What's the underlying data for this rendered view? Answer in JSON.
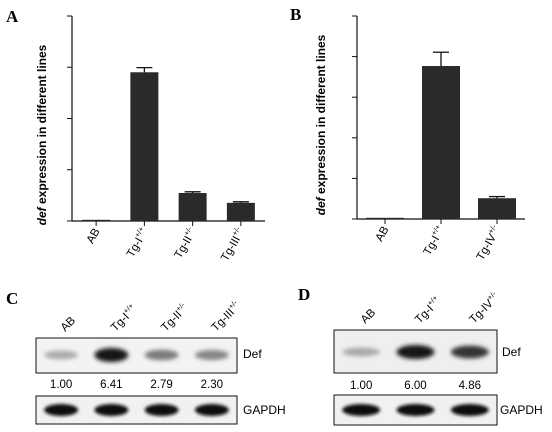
{
  "panels": {
    "A": {
      "letter": "A"
    },
    "B": {
      "letter": "B"
    },
    "C": {
      "letter": "C"
    },
    "D": {
      "letter": "D"
    }
  },
  "chart_data": [
    {
      "type": "bar",
      "panel": "A",
      "ylabel_italic": "def",
      "ylabel_rest": " expression in different lines",
      "ylim": [
        0,
        200
      ],
      "yticks": [
        "0",
        "50",
        "100",
        "150",
        "200"
      ],
      "categories": [
        {
          "base": "AB",
          "sup": ""
        },
        {
          "base": "Tg-I",
          "sup": "+/+"
        },
        {
          "base": "Tg-II",
          "sup": "+/-"
        },
        {
          "base": "Tg-III",
          "sup": "+/-"
        }
      ],
      "values": [
        1.0,
        145.1,
        27.3,
        17.7
      ],
      "value_labels": [
        "1.0",
        "145.1",
        "27.3",
        "17.7"
      ],
      "errors": [
        0,
        4.5,
        1.2,
        1.0
      ],
      "bar_color": "#2a2a2a"
    },
    {
      "type": "bar",
      "panel": "B",
      "ylabel_italic": "def",
      "ylabel_rest": " expression in different lines",
      "ylim": [
        0,
        250
      ],
      "yticks": [
        "0",
        "50",
        "100",
        "150",
        "200",
        "250"
      ],
      "categories": [
        {
          "base": "AB",
          "sup": ""
        },
        {
          "base": "Tg-I",
          "sup": "+/+"
        },
        {
          "base": "Tg-IV",
          "sup": "+/-"
        }
      ],
      "values": [
        1.0,
        188.4,
        25.6
      ],
      "value_labels": [
        "1.0",
        "188.4",
        "25.6"
      ],
      "errors": [
        0,
        17,
        2
      ],
      "bar_color": "#2a2a2a"
    }
  ],
  "blots": {
    "C": {
      "lanes": [
        {
          "base": "AB",
          "sup": ""
        },
        {
          "base": "Tg-I",
          "sup": "+/+"
        },
        {
          "base": "Tg-II",
          "sup": "+/-"
        },
        {
          "base": "Tg-III",
          "sup": "+/-"
        }
      ],
      "target_label": "Def",
      "quant": [
        "1.00",
        "6.41",
        "2.79",
        "2.30"
      ],
      "loading_label": "GAPDH"
    },
    "D": {
      "lanes": [
        {
          "base": "AB",
          "sup": ""
        },
        {
          "base": "Tg-I",
          "sup": "+/+"
        },
        {
          "base": "Tg-IV",
          "sup": "+/-"
        }
      ],
      "target_label": "Def",
      "quant": [
        "1.00",
        "6.00",
        "4.86"
      ],
      "loading_label": "GAPDH"
    }
  }
}
